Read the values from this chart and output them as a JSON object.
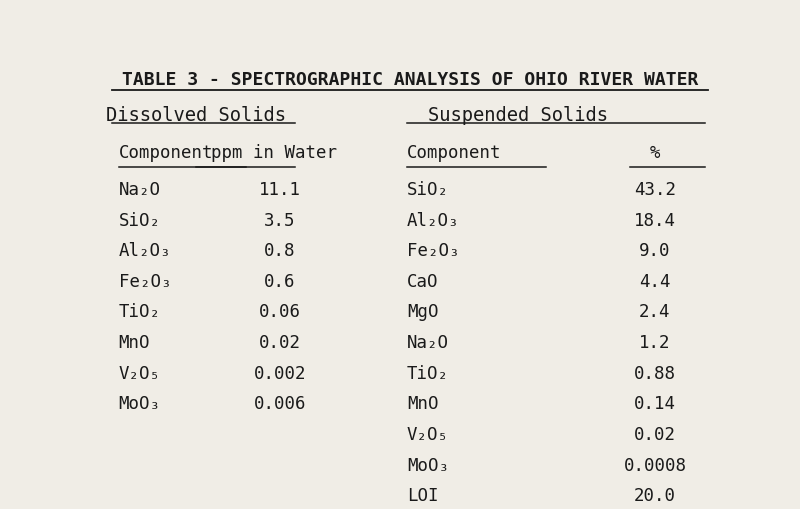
{
  "title": "TABLE 3 - SPECTROGRAPHIC ANALYSIS OF OHIO RIVER WATER",
  "dissolved_header": "Dissolved Solids",
  "suspended_header": "Suspended Solids",
  "col1_header": "Component",
  "col2_header": "ppm in Water",
  "col3_header": "Component",
  "col4_header": "%",
  "dissolved_components": [
    "Na₂O",
    "SiO₂",
    "Al₂O₃",
    "Fe₂O₃",
    "TiO₂",
    "MnO",
    "V₂O₅",
    "MoO₃"
  ],
  "dissolved_values": [
    "11.1",
    "3.5",
    "0.8",
    "0.6",
    "0.06",
    "0.02",
    "0.002",
    "0.006"
  ],
  "suspended_components": [
    "SiO₂",
    "Al₂O₃",
    "Fe₂O₃",
    "CaO",
    "MgO",
    "Na₂O",
    "TiO₂",
    "MnO",
    "V₂O₅",
    "MoO₃",
    "LOI"
  ],
  "suspended_values": [
    "43.2",
    "18.4",
    "9.0",
    "4.4",
    "2.4",
    "1.2",
    "0.88",
    "0.14",
    "0.02",
    "0.0008",
    "20.0"
  ],
  "bg_color": "#f0ede6",
  "text_color": "#1a1a1a",
  "font_size": 12.5,
  "title_font_size": 13.0,
  "header_font_size": 13.5
}
